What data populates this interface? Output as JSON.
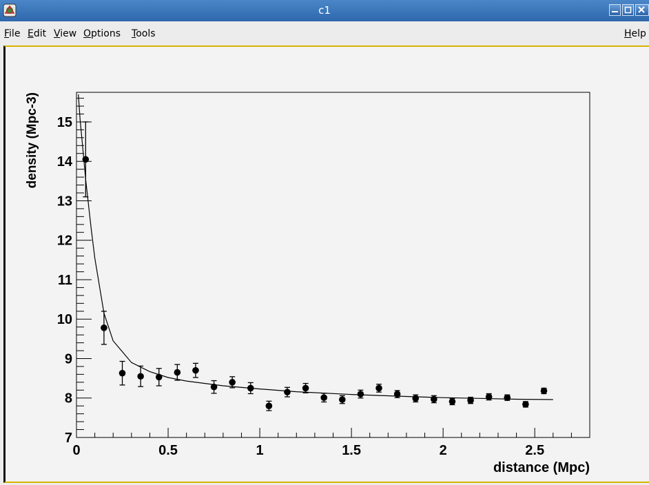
{
  "window": {
    "title": "c1"
  },
  "menu": {
    "file": {
      "underlined": "F",
      "rest": "ile"
    },
    "edit": {
      "underlined": "E",
      "rest": "dit"
    },
    "view": {
      "underlined": "V",
      "rest": "iew"
    },
    "options": {
      "underlined": "O",
      "rest": "ptions"
    },
    "tools": {
      "underlined": "T",
      "rest": "ools"
    },
    "help": {
      "underlined": "H",
      "rest": "elp"
    }
  },
  "chart_data": {
    "type": "scatter",
    "xlabel": "distance (Mpc)",
    "ylabel": "density (Mpc-3)",
    "xlim": [
      0,
      2.8
    ],
    "ylim": [
      7,
      15.75
    ],
    "x_ticks": [
      "0",
      "0.5",
      "1",
      "1.5",
      "2",
      "2.5"
    ],
    "y_ticks": [
      "7",
      "8",
      "9",
      "10",
      "11",
      "12",
      "13",
      "14",
      "15"
    ],
    "points": [
      {
        "x": 0.05,
        "y": 14.05,
        "err": 0.95
      },
      {
        "x": 0.15,
        "y": 9.78,
        "err": 0.42
      },
      {
        "x": 0.25,
        "y": 8.63,
        "err": 0.3
      },
      {
        "x": 0.35,
        "y": 8.55,
        "err": 0.26
      },
      {
        "x": 0.45,
        "y": 8.53,
        "err": 0.22
      },
      {
        "x": 0.55,
        "y": 8.65,
        "err": 0.2
      },
      {
        "x": 0.65,
        "y": 8.7,
        "err": 0.18
      },
      {
        "x": 0.75,
        "y": 8.28,
        "err": 0.16
      },
      {
        "x": 0.85,
        "y": 8.4,
        "err": 0.14
      },
      {
        "x": 0.95,
        "y": 8.25,
        "err": 0.14
      },
      {
        "x": 1.05,
        "y": 7.8,
        "err": 0.12
      },
      {
        "x": 1.15,
        "y": 8.15,
        "err": 0.12
      },
      {
        "x": 1.25,
        "y": 8.25,
        "err": 0.12
      },
      {
        "x": 1.35,
        "y": 8.01,
        "err": 0.11
      },
      {
        "x": 1.45,
        "y": 7.96,
        "err": 0.1
      },
      {
        "x": 1.55,
        "y": 8.1,
        "err": 0.1
      },
      {
        "x": 1.65,
        "y": 8.25,
        "err": 0.1
      },
      {
        "x": 1.75,
        "y": 8.1,
        "err": 0.09
      },
      {
        "x": 1.85,
        "y": 7.99,
        "err": 0.09
      },
      {
        "x": 1.95,
        "y": 7.97,
        "err": 0.09
      },
      {
        "x": 2.05,
        "y": 7.91,
        "err": 0.08
      },
      {
        "x": 2.15,
        "y": 7.94,
        "err": 0.08
      },
      {
        "x": 2.25,
        "y": 8.03,
        "err": 0.08
      },
      {
        "x": 2.35,
        "y": 8.01,
        "err": 0.07
      },
      {
        "x": 2.45,
        "y": 7.84,
        "err": 0.07
      },
      {
        "x": 2.55,
        "y": 8.18,
        "err": 0.07
      }
    ],
    "fit_curve": {
      "x": [
        0.01,
        0.02,
        0.03,
        0.05,
        0.08,
        0.1,
        0.15,
        0.2,
        0.3,
        0.4,
        0.5,
        0.6,
        0.8,
        1.0,
        1.2,
        1.5,
        1.8,
        2.0,
        2.2,
        2.4,
        2.6
      ],
      "y": [
        15.7,
        15.05,
        14.55,
        13.55,
        12.3,
        11.55,
        10.15,
        9.45,
        8.9,
        8.67,
        8.52,
        8.43,
        8.31,
        8.23,
        8.16,
        8.09,
        8.04,
        8.01,
        7.99,
        7.97,
        7.96
      ]
    },
    "grid": false,
    "marker": "filled circle with error bars",
    "line_color": "#000000",
    "frame_background": "#f3f3f3"
  }
}
